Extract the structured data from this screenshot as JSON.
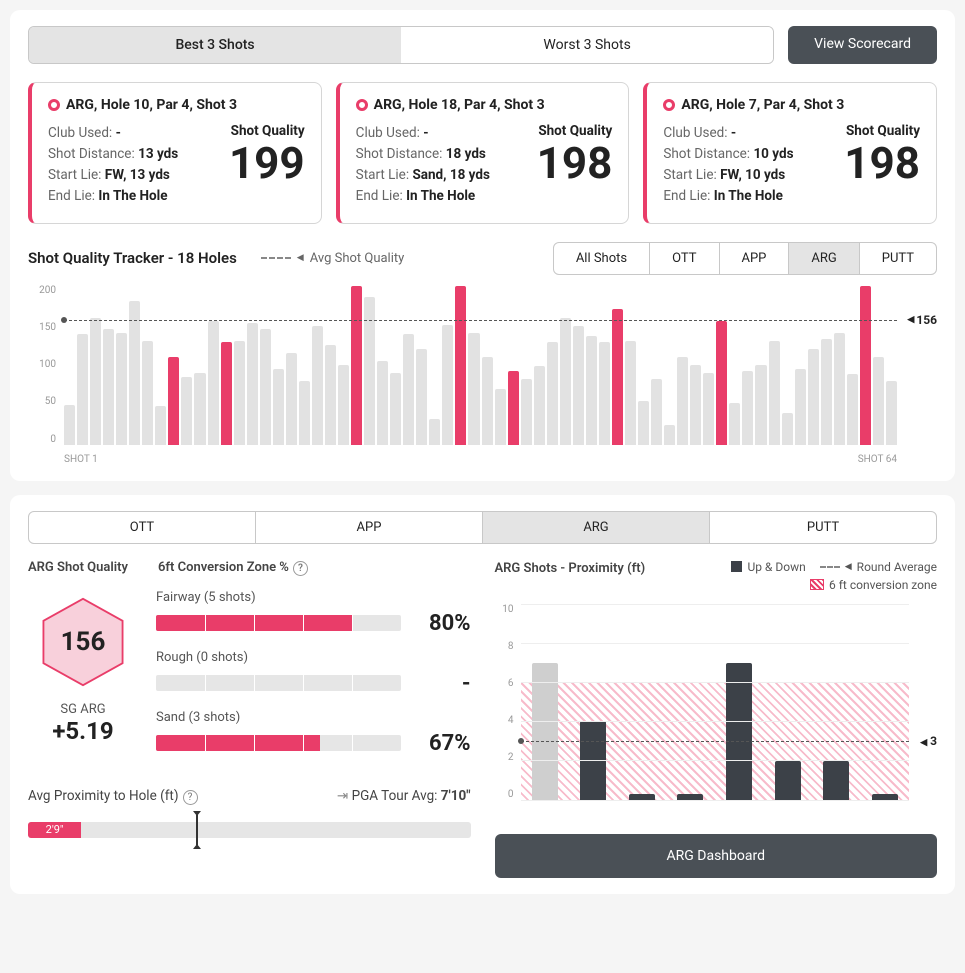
{
  "colors": {
    "accent": "#e93d69",
    "bar_grey": "#e2e2e2",
    "bar_dark": "#3c4148",
    "btn_dark": "#4a5056"
  },
  "toolbar": {
    "seg": [
      {
        "label": "Best 3 Shots",
        "active": true
      },
      {
        "label": "Worst 3 Shots",
        "active": false
      }
    ],
    "view_scorecard": "View Scorecard"
  },
  "cards": [
    {
      "title": "ARG, Hole 10, Par 4, Shot 3",
      "club": "-",
      "distance": "13 yds",
      "start_lie": "FW, 13 yds",
      "end_lie": "In The Hole",
      "sq": 199
    },
    {
      "title": "ARG, Hole 18, Par 4, Shot 3",
      "club": "-",
      "distance": "18 yds",
      "start_lie": "Sand, 18 yds",
      "end_lie": "In The Hole",
      "sq": 198
    },
    {
      "title": "ARG, Hole 7, Par 4, Shot 3",
      "club": "-",
      "distance": "10 yds",
      "start_lie": "FW, 10 yds",
      "end_lie": "In The Hole",
      "sq": 198
    }
  ],
  "card_labels": {
    "club": "Club Used: ",
    "dist": "Shot Distance: ",
    "start": "Start Lie: ",
    "end": "End Lie: ",
    "sq": "Shot Quality"
  },
  "tracker": {
    "title": "Shot Quality Tracker - 18 Holes",
    "legend": "Avg Shot Quality",
    "filters": [
      {
        "label": "All Shots",
        "active": false
      },
      {
        "label": "OTT",
        "active": false
      },
      {
        "label": "APP",
        "active": false
      },
      {
        "label": "ARG",
        "active": true
      },
      {
        "label": "PUTT",
        "active": false
      }
    ],
    "ymax": 200,
    "yticks": [
      200,
      150,
      100,
      50,
      0
    ],
    "avg": 156,
    "xstart": "SHOT 1",
    "xend": "SHOT 64",
    "bars": [
      {
        "v": 50,
        "h": false
      },
      {
        "v": 138,
        "h": false
      },
      {
        "v": 158,
        "h": false
      },
      {
        "v": 145,
        "h": false
      },
      {
        "v": 140,
        "h": false
      },
      {
        "v": 180,
        "h": false
      },
      {
        "v": 130,
        "h": false
      },
      {
        "v": 48,
        "h": false
      },
      {
        "v": 110,
        "h": true
      },
      {
        "v": 85,
        "h": false
      },
      {
        "v": 90,
        "h": false
      },
      {
        "v": 155,
        "h": false
      },
      {
        "v": 128,
        "h": true
      },
      {
        "v": 130,
        "h": false
      },
      {
        "v": 152,
        "h": false
      },
      {
        "v": 145,
        "h": false
      },
      {
        "v": 95,
        "h": false
      },
      {
        "v": 115,
        "h": false
      },
      {
        "v": 80,
        "h": false
      },
      {
        "v": 148,
        "h": false
      },
      {
        "v": 125,
        "h": false
      },
      {
        "v": 100,
        "h": false
      },
      {
        "v": 198,
        "h": true
      },
      {
        "v": 185,
        "h": false
      },
      {
        "v": 105,
        "h": false
      },
      {
        "v": 90,
        "h": false
      },
      {
        "v": 138,
        "h": false
      },
      {
        "v": 120,
        "h": false
      },
      {
        "v": 32,
        "h": false
      },
      {
        "v": 150,
        "h": false
      },
      {
        "v": 199,
        "h": true
      },
      {
        "v": 140,
        "h": false
      },
      {
        "v": 110,
        "h": false
      },
      {
        "v": 70,
        "h": false
      },
      {
        "v": 92,
        "h": true
      },
      {
        "v": 82,
        "h": false
      },
      {
        "v": 98,
        "h": false
      },
      {
        "v": 128,
        "h": false
      },
      {
        "v": 158,
        "h": false
      },
      {
        "v": 148,
        "h": false
      },
      {
        "v": 136,
        "h": false
      },
      {
        "v": 128,
        "h": false
      },
      {
        "v": 170,
        "h": true
      },
      {
        "v": 130,
        "h": false
      },
      {
        "v": 55,
        "h": false
      },
      {
        "v": 82,
        "h": false
      },
      {
        "v": 25,
        "h": false
      },
      {
        "v": 110,
        "h": false
      },
      {
        "v": 100,
        "h": false
      },
      {
        "v": 90,
        "h": false
      },
      {
        "v": 155,
        "h": true
      },
      {
        "v": 52,
        "h": false
      },
      {
        "v": 92,
        "h": false
      },
      {
        "v": 100,
        "h": false
      },
      {
        "v": 130,
        "h": false
      },
      {
        "v": 40,
        "h": false
      },
      {
        "v": 95,
        "h": false
      },
      {
        "v": 120,
        "h": false
      },
      {
        "v": 132,
        "h": false
      },
      {
        "v": 140,
        "h": false
      },
      {
        "v": 88,
        "h": false
      },
      {
        "v": 198,
        "h": true
      },
      {
        "v": 110,
        "h": false
      },
      {
        "v": 80,
        "h": false
      }
    ]
  },
  "tabs2": [
    {
      "label": "OTT",
      "active": false
    },
    {
      "label": "APP",
      "active": false
    },
    {
      "label": "ARG",
      "active": true
    },
    {
      "label": "PUTT",
      "active": false
    }
  ],
  "arg_quality": {
    "heading": "ARG Shot Quality",
    "hex_value": 156,
    "hex_fill": "#f8d0db",
    "hex_stroke": "#e93d69",
    "sg_label": "SG ARG",
    "sg_value": "+5.19"
  },
  "conversion": {
    "heading": "6ft Conversion Zone %",
    "rows": [
      {
        "label": "Fairway (5 shots)",
        "pct": 80,
        "display": "80%"
      },
      {
        "label": "Rough (0 shots)",
        "pct": 0,
        "display": "-"
      },
      {
        "label": "Sand (3 shots)",
        "pct": 67,
        "display": "67%"
      }
    ]
  },
  "proximity": {
    "heading": "Avg Proximity to Hole (ft)",
    "avg_label": "2'9\"",
    "avg_pct": 12,
    "pga_label": "PGA Tour Avg:",
    "pga_value": "7'10\"",
    "pga_pct": 38
  },
  "prox_chart": {
    "heading": "ARG Shots - Proximity (ft)",
    "legend_updown": "Up & Down",
    "legend_roundavg": "Round Average",
    "legend_zone": "6 ft conversion zone",
    "ymax": 10,
    "yticks": [
      10,
      8,
      6,
      4,
      2,
      0
    ],
    "zone_top": 6,
    "avg": 3,
    "bars": [
      {
        "v": 7,
        "up": false
      },
      {
        "v": 4,
        "up": true
      },
      {
        "v": 0.3,
        "up": true
      },
      {
        "v": 0.3,
        "up": true
      },
      {
        "v": 7,
        "up": true
      },
      {
        "v": 2,
        "up": true
      },
      {
        "v": 2,
        "up": true
      },
      {
        "v": 0.3,
        "up": true
      }
    ],
    "dashboard_btn": "ARG Dashboard"
  }
}
